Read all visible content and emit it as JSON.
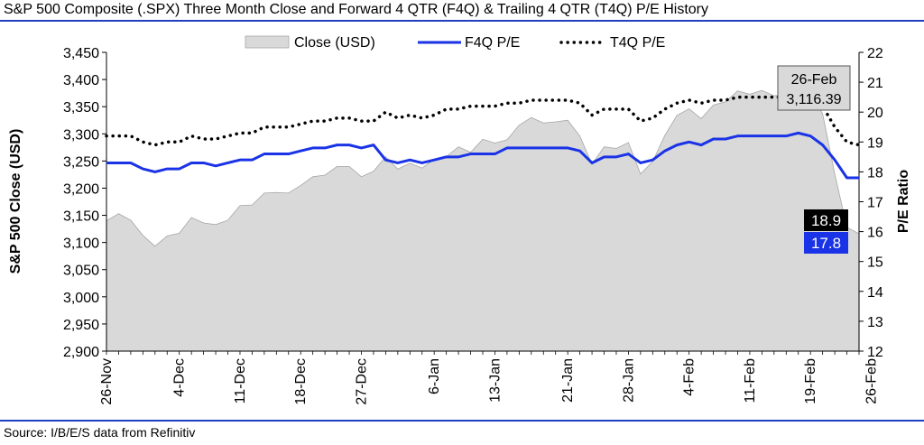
{
  "page": {
    "title": "S&P 500 Composite (.SPX) Three Month Close and Forward 4 QTR (F4Q) & Trailing 4 QTR (T4Q) P/E History",
    "source": "Source: I/B/E/S data from Refinitiv"
  },
  "colors": {
    "area_fill": "#d9d9d9",
    "area_stroke": "#a6a6a6",
    "f4q_line": "#1a33e6",
    "t4q_line": "#000000",
    "rule": "#1f3fbf",
    "t4q_badge_bg": "#000000",
    "f4q_badge_bg": "#1a33e6",
    "callout_bg": "#d9d9d9"
  },
  "chart_data": {
    "type": "area",
    "title": "S&P 500 Composite (.SPX) Three Month Close and Forward 4 QTR (F4Q) & Trailing 4 QTR (T4Q) P/E History",
    "ylabel": "S&P 500 Close (USD)",
    "y2label": "P/E Ratio",
    "ylim": [
      2900,
      3450
    ],
    "y_ticks": [
      "2,900",
      "2,950",
      "3,000",
      "3,050",
      "3,100",
      "3,150",
      "3,200",
      "3,250",
      "3,300",
      "3,350",
      "3,400",
      "3,450"
    ],
    "y2lim": [
      12,
      22
    ],
    "y2_ticks": [
      "12",
      "13",
      "14",
      "15",
      "16",
      "17",
      "18",
      "19",
      "20",
      "21",
      "22"
    ],
    "x_ticks": [
      "26-Nov",
      "4-Dec",
      "11-Dec",
      "18-Dec",
      "27-Dec",
      "6-Jan",
      "13-Jan",
      "21-Jan",
      "28-Jan",
      "4-Feb",
      "11-Feb",
      "19-Feb",
      "26-Feb"
    ],
    "x_tick_index": [
      0,
      6,
      11,
      16,
      21,
      27,
      32,
      38,
      43,
      48,
      53,
      58,
      63
    ],
    "legend_position": "top",
    "series": [
      {
        "name": "Close (USD)",
        "axis": "left",
        "style": "area",
        "values": [
          3140,
          3153,
          3141,
          3113,
          3093,
          3112,
          3117,
          3146,
          3136,
          3133,
          3141,
          3168,
          3169,
          3191,
          3192,
          3191,
          3205,
          3221,
          3224,
          3240,
          3240,
          3221,
          3231,
          3258,
          3235,
          3246,
          3237,
          3253,
          3258,
          3276,
          3266,
          3290,
          3283,
          3289,
          3316,
          3330,
          3320,
          3322,
          3325,
          3296,
          3244,
          3276,
          3273,
          3284,
          3226,
          3249,
          3297,
          3334,
          3346,
          3328,
          3353,
          3359,
          3379,
          3373,
          3380,
          3370,
          3373,
          3386,
          3373,
          3337,
          3226,
          3128,
          3116
        ]
      },
      {
        "name": "F4Q P/E",
        "axis": "right",
        "style": "solid",
        "values": [
          18.3,
          18.3,
          18.3,
          18.1,
          18.0,
          18.1,
          18.1,
          18.3,
          18.3,
          18.2,
          18.3,
          18.4,
          18.4,
          18.6,
          18.6,
          18.6,
          18.7,
          18.8,
          18.8,
          18.9,
          18.9,
          18.8,
          18.9,
          18.4,
          18.3,
          18.4,
          18.3,
          18.4,
          18.5,
          18.5,
          18.6,
          18.6,
          18.6,
          18.8,
          18.8,
          18.8,
          18.8,
          18.8,
          18.8,
          18.7,
          18.3,
          18.5,
          18.5,
          18.6,
          18.3,
          18.4,
          18.7,
          18.9,
          19.0,
          18.9,
          19.1,
          19.1,
          19.2,
          19.2,
          19.2,
          19.2,
          19.2,
          19.3,
          19.2,
          18.9,
          18.4,
          17.8,
          17.8
        ]
      },
      {
        "name": "T4Q P/E",
        "axis": "right",
        "style": "dotted",
        "values": [
          19.2,
          19.2,
          19.2,
          19.0,
          18.9,
          19.0,
          19.0,
          19.2,
          19.1,
          19.1,
          19.2,
          19.3,
          19.3,
          19.5,
          19.5,
          19.5,
          19.6,
          19.7,
          19.7,
          19.8,
          19.8,
          19.7,
          19.7,
          20.0,
          19.8,
          19.9,
          19.8,
          19.9,
          20.1,
          20.1,
          20.2,
          20.2,
          20.2,
          20.3,
          20.3,
          20.4,
          20.4,
          20.4,
          20.4,
          20.3,
          19.9,
          20.1,
          20.1,
          20.1,
          19.7,
          19.8,
          20.1,
          20.3,
          20.4,
          20.3,
          20.4,
          20.4,
          20.5,
          20.5,
          20.5,
          20.5,
          20.5,
          20.6,
          20.5,
          20.2,
          19.5,
          19.0,
          18.9
        ]
      }
    ],
    "annotations": {
      "callout": {
        "date": "26-Feb",
        "value": "3,116.39"
      },
      "t4q_last": "18.9",
      "f4q_last": "17.8"
    }
  }
}
